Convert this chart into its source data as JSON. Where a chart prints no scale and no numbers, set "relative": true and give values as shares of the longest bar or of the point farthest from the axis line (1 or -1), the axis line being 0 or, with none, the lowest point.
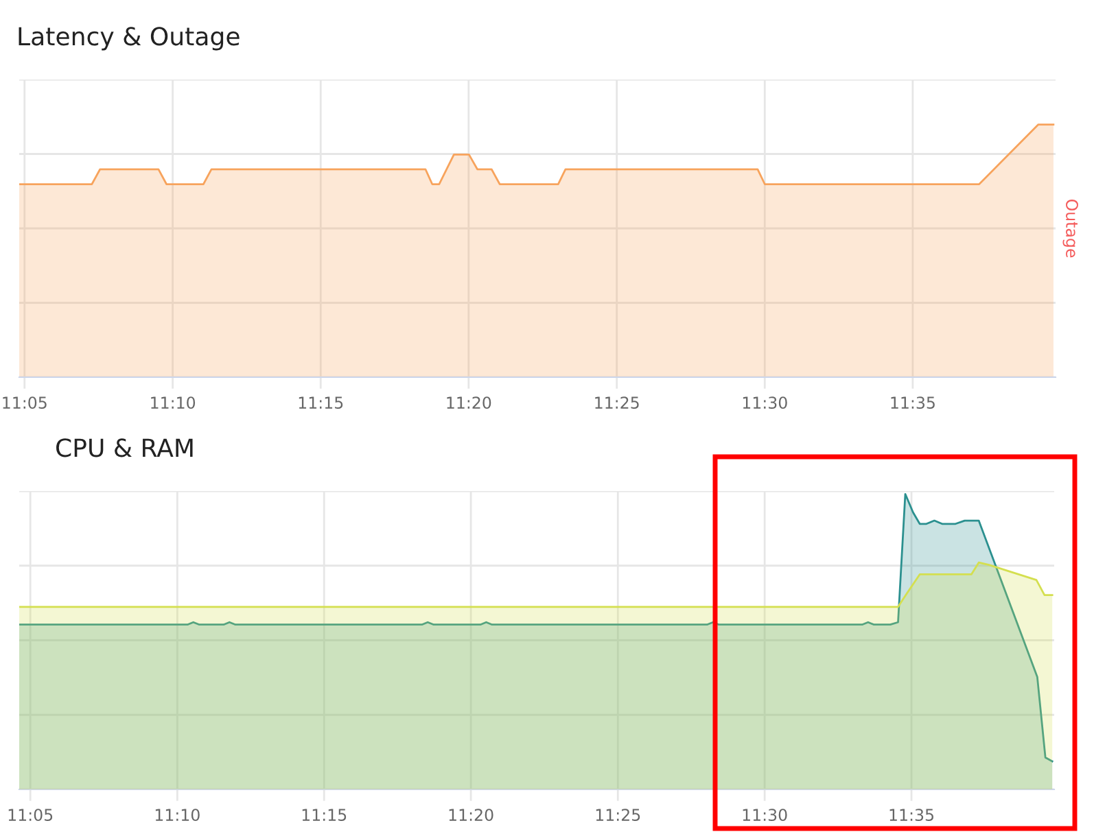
{
  "chart_data": [
    {
      "type": "area",
      "title": "Latency & Outage",
      "y2label": "Outage",
      "relative": true,
      "xlim": [
        11.0803,
        11.6637
      ],
      "xticks": [
        {
          "value": 11.0833,
          "label": "11:05"
        },
        {
          "value": 11.1667,
          "label": "11:10"
        },
        {
          "value": 11.25,
          "label": "11:15"
        },
        {
          "value": 11.3333,
          "label": "11:20"
        },
        {
          "value": 11.4167,
          "label": "11:25"
        },
        {
          "value": 11.5,
          "label": "11:30"
        },
        {
          "value": 11.5833,
          "label": "11:35"
        }
      ],
      "grid": true,
      "tick_labels": "x",
      "series": [
        {
          "color": "#f7a35c",
          "x": [
            11.0803,
            11.1212,
            11.1258,
            11.1587,
            11.1632,
            11.184,
            11.1885,
            11.309,
            11.3128,
            11.3167,
            11.325,
            11.3335,
            11.3382,
            11.3462,
            11.3508,
            11.3837,
            11.3878,
            11.496,
            11.5,
            11.6207,
            11.654,
            11.6625
          ],
          "values": [
            0.764,
            0.764,
            0.823,
            0.823,
            0.764,
            0.764,
            0.823,
            0.823,
            0.764,
            0.764,
            0.881,
            0.881,
            0.823,
            0.823,
            0.764,
            0.764,
            0.823,
            0.823,
            0.764,
            0.764,
            1,
            1
          ]
        }
      ]
    },
    {
      "type": "area",
      "title": "CPU & RAM",
      "relative": true,
      "xlim": [
        11.077,
        11.6643
      ],
      "xticks": [
        {
          "value": 11.0833,
          "label": "11:05"
        },
        {
          "value": 11.1667,
          "label": "11:10"
        },
        {
          "value": 11.25,
          "label": "11:15"
        },
        {
          "value": 11.3333,
          "label": "11:20"
        },
        {
          "value": 11.4167,
          "label": "11:25"
        },
        {
          "value": 11.5,
          "label": "11:30"
        },
        {
          "value": 11.5833,
          "label": "11:35"
        }
      ],
      "grid": true,
      "tick_labels": "x",
      "series": [
        {
          "color": "#2b908f",
          "x": [
            11.077,
            11.1725,
            11.1758,
            11.1792,
            11.193,
            11.1963,
            11.1997,
            11.3055,
            11.3088,
            11.3122,
            11.3387,
            11.342,
            11.3453,
            11.4673,
            11.4707,
            11.474,
            11.5553,
            11.5587,
            11.562,
            11.5713,
            11.5757,
            11.5798,
            11.5842,
            11.588,
            11.5918,
            11.5963,
            11.6007,
            11.6083,
            11.6135,
            11.6215,
            11.6547,
            11.6593,
            11.6632
          ],
          "values": [
            0.558,
            0.558,
            0.566,
            0.558,
            0.558,
            0.566,
            0.558,
            0.558,
            0.566,
            0.558,
            0.558,
            0.566,
            0.558,
            0.558,
            0.566,
            0.558,
            0.558,
            0.566,
            0.558,
            0.558,
            0.566,
            1,
            0.938,
            0.899,
            0.899,
            0.91,
            0.899,
            0.899,
            0.91,
            0.91,
            0.381,
            0.108,
            0.095
          ]
        },
        {
          "color": "#d4df4f",
          "x": [
            11.077,
            11.5757,
            11.5803,
            11.588,
            11.6173,
            11.6215,
            11.6273,
            11.6542,
            11.6588,
            11.6632
          ],
          "values": [
            0.618,
            0.618,
            0.66,
            0.728,
            0.728,
            0.768,
            0.76,
            0.709,
            0.658,
            0.658
          ]
        }
      ]
    }
  ]
}
